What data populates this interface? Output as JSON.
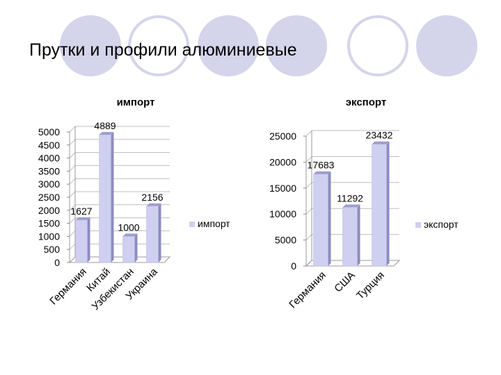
{
  "slide": {
    "title": "Прутки и профили алюминиевые",
    "accent_color": "#d4d4ea",
    "circle_outline_color": "#d4d4ea"
  },
  "chart_data": [
    {
      "type": "bar",
      "title": "импорт",
      "categories": [
        "Германия",
        "Китай",
        "Узбекистан",
        "Украина"
      ],
      "series": [
        {
          "name": "импорт",
          "values": [
            1627,
            4889,
            1000,
            2156
          ]
        }
      ],
      "y_ticks": [
        0,
        500,
        1000,
        1500,
        2000,
        2500,
        3000,
        3500,
        4000,
        4500,
        5000
      ],
      "ylim": [
        0,
        5000
      ],
      "grid": true,
      "legend": "right",
      "bar_color": "#cfcff0"
    },
    {
      "type": "bar",
      "title": "экспорт",
      "categories": [
        "Германия",
        "США",
        "Турция"
      ],
      "series": [
        {
          "name": "экспорт",
          "values": [
            17683,
            11292,
            23432
          ]
        }
      ],
      "y_ticks": [
        0,
        5000,
        10000,
        15000,
        20000,
        25000
      ],
      "ylim": [
        0,
        25000
      ],
      "grid": true,
      "legend": "right",
      "bar_color": "#cfcff0"
    }
  ]
}
